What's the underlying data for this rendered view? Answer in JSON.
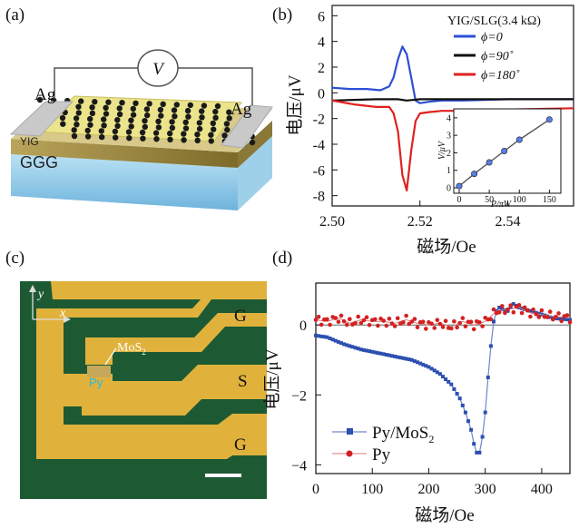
{
  "panels": {
    "a": {
      "label": "(a)",
      "voltmeter": "V",
      "electrode_left": "Ag",
      "electrode_right": "Ag",
      "layer1": "YIG",
      "layer2": "GGG"
    },
    "b": {
      "label": "(b)"
    },
    "c": {
      "label": "(c)",
      "axis_y": "y",
      "axis_x": "x",
      "material": "MoS",
      "material_sub": "2",
      "sample": "Py",
      "pad_top": "G",
      "pad_mid": "S",
      "pad_bot": "G"
    },
    "d": {
      "label": "(d)"
    }
  },
  "chart_data": [
    {
      "id": "b",
      "type": "line",
      "title": "YIG/SLG(3.4 kΩ)",
      "xlabel": "磁场/Oe",
      "ylabel": "电压/μV",
      "xlim": [
        2.5,
        2.555
      ],
      "ylim": [
        -8.8,
        6.8
      ],
      "xticks": [
        2.5,
        2.52,
        2.54
      ],
      "xtick_labels": [
        "2.50",
        "2.52",
        "2.54"
      ],
      "yticks": [
        6,
        4,
        2,
        0,
        -2,
        -4,
        -6,
        -8
      ],
      "ytick_labels": [
        "6",
        "4",
        "2",
        "0",
        "-2",
        "-4",
        "-6",
        "-8"
      ],
      "legend": [
        "ϕ=0",
        "ϕ=90˚",
        "ϕ=180˚"
      ],
      "series": [
        {
          "name": "ϕ=0",
          "color": "#2c4fd6",
          "x": [
            2.5,
            2.504,
            2.508,
            2.511,
            2.513,
            2.514,
            2.515,
            2.516,
            2.517,
            2.518,
            2.519,
            2.52,
            2.522,
            2.525,
            2.53,
            2.54,
            2.555
          ],
          "y": [
            0.4,
            0.3,
            0.3,
            0.2,
            0.5,
            1.2,
            2.6,
            3.6,
            3.0,
            1.2,
            -0.6,
            -0.8,
            -0.7,
            -0.6,
            -0.6,
            -0.5,
            -0.5
          ]
        },
        {
          "name": "ϕ=90˚",
          "color": "#111111",
          "x": [
            2.5,
            2.51,
            2.515,
            2.517,
            2.52,
            2.53,
            2.555
          ],
          "y": [
            -0.6,
            -0.5,
            -0.5,
            -0.6,
            -0.5,
            -0.5,
            -0.5
          ]
        },
        {
          "name": "ϕ=180˚",
          "color": "#e02020",
          "x": [
            2.5,
            2.505,
            2.51,
            2.513,
            2.514,
            2.515,
            2.516,
            2.517,
            2.518,
            2.519,
            2.52,
            2.522,
            2.525,
            2.53,
            2.54,
            2.555
          ],
          "y": [
            -0.6,
            -0.9,
            -1.1,
            -1.1,
            -1.6,
            -3.0,
            -6.4,
            -7.6,
            -4.5,
            -2.2,
            -1.6,
            -1.5,
            -1.4,
            -1.4,
            -1.3,
            -1.2
          ]
        }
      ],
      "inset": {
        "type": "line",
        "xlabel": "P/πW",
        "ylabel": "V/μV",
        "xlim": [
          0,
          160
        ],
        "ylim": [
          0,
          4.2
        ],
        "xticks": [
          0,
          50,
          100,
          150
        ],
        "xtick_labels": [
          "0",
          "50",
          "100",
          "150"
        ],
        "yticks": [
          0,
          1,
          2,
          3,
          4
        ],
        "ytick_labels": [
          "0",
          "1",
          "2",
          "3",
          "4"
        ],
        "x": [
          0,
          25,
          50,
          75,
          100,
          150
        ],
        "y": [
          0.1,
          0.8,
          1.45,
          2.1,
          2.75,
          3.9
        ],
        "color": "#5a7de0"
      }
    },
    {
      "id": "d",
      "type": "line",
      "xlabel": "磁场/Oe",
      "ylabel": "电压/μV",
      "xlim": [
        0,
        450
      ],
      "ylim": [
        -4.25,
        1.2
      ],
      "xticks": [
        0,
        100,
        200,
        300,
        400
      ],
      "xtick_labels": [
        "0",
        "100",
        "200",
        "300",
        "400"
      ],
      "yticks": [
        0,
        -2,
        -4
      ],
      "ytick_labels": [
        "0",
        "−2",
        "−4"
      ],
      "legend": [
        "Py/MoS2",
        "Py"
      ],
      "series": [
        {
          "name": "Py/MoS2",
          "color": "#2c4fb0",
          "x": [
            0,
            20,
            50,
            80,
            110,
            140,
            170,
            200,
            220,
            240,
            255,
            265,
            275,
            280,
            285,
            290,
            295,
            300,
            305,
            310,
            315,
            320,
            325,
            330,
            340,
            350,
            360,
            380,
            400,
            420,
            450
          ],
          "y": [
            -0.3,
            -0.35,
            -0.55,
            -0.7,
            -0.8,
            -0.9,
            -1.0,
            -1.2,
            -1.4,
            -1.7,
            -2.1,
            -2.5,
            -3.0,
            -3.4,
            -3.65,
            -3.65,
            -3.2,
            -2.5,
            -1.5,
            -0.6,
            0.1,
            0.4,
            0.5,
            0.45,
            0.4,
            0.6,
            0.5,
            0.4,
            0.3,
            0.2,
            0.15
          ]
        },
        {
          "name": "Py",
          "color": "#d42020",
          "x": [
            0,
            20,
            40,
            60,
            80,
            100,
            120,
            140,
            160,
            180,
            200,
            220,
            240,
            260,
            280,
            300,
            320,
            340,
            360,
            380,
            400,
            420,
            450
          ],
          "y": [
            0.15,
            0.1,
            0.2,
            0.05,
            0.15,
            0.1,
            0.1,
            0.05,
            0.15,
            0.05,
            0.0,
            0.05,
            -0.05,
            0.1,
            0.0,
            0.1,
            0.4,
            0.45,
            0.5,
            0.35,
            0.3,
            0.25,
            0.2
          ]
        }
      ]
    }
  ]
}
